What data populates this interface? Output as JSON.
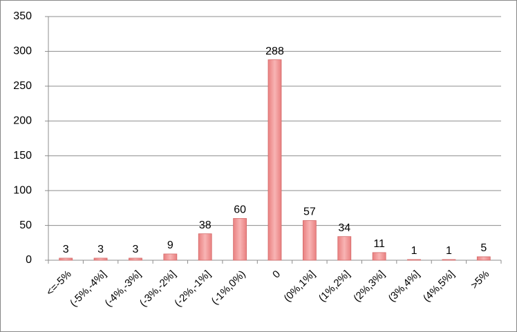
{
  "chart_data": {
    "type": "bar",
    "categories": [
      "<=-5%",
      "(-5%,-4%]",
      "(-4%,-3%]",
      "(-3%,-2%]",
      "(-2%,-1%]",
      "(-1%,0%)",
      "0",
      "(0%,1%]",
      "(1%,2%]",
      "(2%,3%]",
      "(3%,4%]",
      "(4%,5%]",
      ">5%"
    ],
    "values": [
      3,
      3,
      3,
      9,
      38,
      60,
      288,
      57,
      34,
      11,
      1,
      1,
      5
    ],
    "color": "#f4a3a3",
    "ylim": [
      0,
      350
    ],
    "yticks": [
      0,
      50,
      100,
      150,
      200,
      250,
      300,
      350
    ],
    "grid": true
  }
}
